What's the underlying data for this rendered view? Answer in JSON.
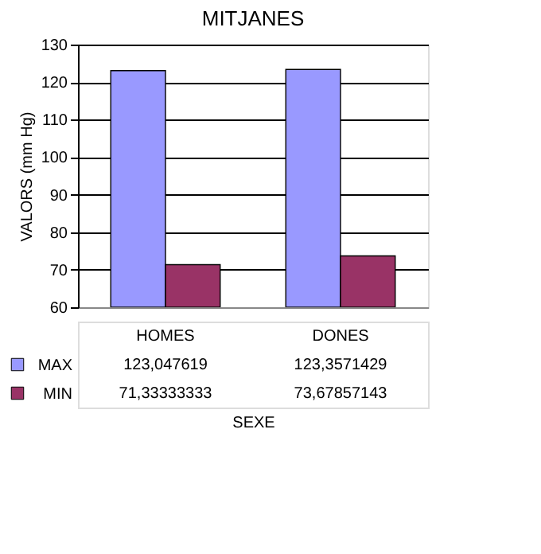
{
  "chart_data": {
    "type": "bar",
    "title": "MITJANES",
    "xlabel": "SEXE",
    "ylabel": "VALORS (mm Hg)",
    "categories": [
      "HOMES",
      "DONES"
    ],
    "series": [
      {
        "name": "MAX",
        "color": "#9999ff",
        "values": [
          123.047619,
          123.3571429
        ],
        "value_labels": [
          "123,047619",
          "123,3571429"
        ]
      },
      {
        "name": "MIN",
        "color": "#993366",
        "values": [
          71.33333333,
          73.67857143
        ],
        "value_labels": [
          "71,33333333",
          "73,67857143"
        ]
      }
    ],
    "ylim": [
      60,
      130
    ],
    "yticks": [
      60,
      70,
      80,
      90,
      100,
      110,
      120,
      130
    ],
    "grid": "y",
    "legend": "bottom"
  }
}
